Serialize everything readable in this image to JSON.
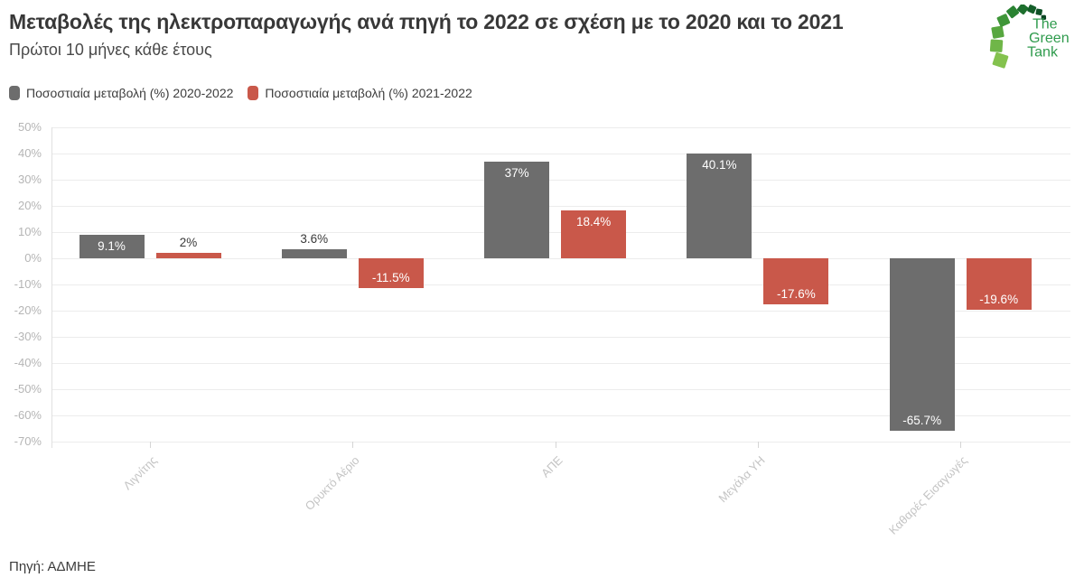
{
  "header": {
    "title": "Μεταβολές της ηλεκτροπαραγωγής ανά πηγή το 2022 σε σχέση με το 2020 και το 2021",
    "subtitle": "Πρώτοι 10 μήνες κάθε έτους"
  },
  "logo": {
    "lines": [
      "The",
      "Green",
      "Tank"
    ],
    "text_color": "#2f9b4d",
    "square_colors": [
      "#84c24e",
      "#6fb648",
      "#57a73f",
      "#3f9638",
      "#2a8332",
      "#1d6f2d",
      "#145e29",
      "#0e5026",
      "#0a4522"
    ]
  },
  "legend": [
    {
      "label": "Ποσοστιαία μεταβολή (%) 2020-2022",
      "color": "#6d6d6d"
    },
    {
      "label": "Ποσοστιαία μεταβολή (%) 2021-2022",
      "color": "#c9584a"
    }
  ],
  "footer": {
    "source": "Πηγή: ΑΔΜΗΕ"
  },
  "chart_data": {
    "type": "bar",
    "categories": [
      "Λιγνίτης",
      "Ορυκτό Αέριο",
      "ΑΠΕ",
      "Μεγάλα ΥΗ",
      "Καθαρές Εισαγωγές"
    ],
    "series": [
      {
        "name": "Ποσοστιαία μεταβολή (%) 2020-2022",
        "color": "#6d6d6d",
        "values": [
          9.1,
          3.6,
          37,
          40.1,
          -65.7
        ],
        "labels": [
          "9.1%",
          "3.6%",
          "37%",
          "40.1%",
          "-65.7%"
        ]
      },
      {
        "name": "Ποσοστιαία μεταβολή (%) 2021-2022",
        "color": "#c9584a",
        "values": [
          2,
          -11.5,
          18.4,
          -17.6,
          -19.6
        ],
        "labels": [
          "2%",
          "-11.5%",
          "18.4%",
          "-17.6%",
          "-19.6%"
        ]
      }
    ],
    "ylim": [
      -70,
      50
    ],
    "yticks": [
      50,
      40,
      30,
      20,
      10,
      0,
      -10,
      -20,
      -30,
      -40,
      -50,
      -60,
      -70
    ],
    "ytick_labels": [
      "50%",
      "40%",
      "30%",
      "20%",
      "10%",
      "0%",
      "-10%",
      "-20%",
      "-30%",
      "-40%",
      "-50%",
      "-60%",
      "-70%"
    ],
    "grid": true,
    "legend_position": "top"
  }
}
